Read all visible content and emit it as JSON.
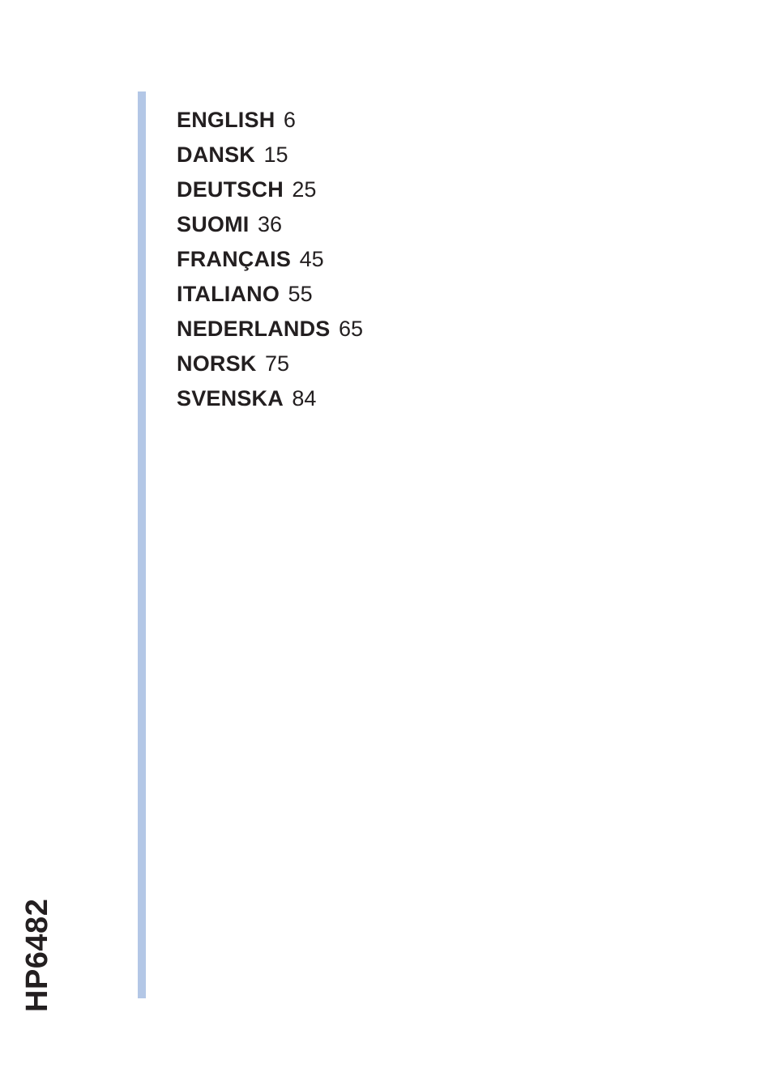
{
  "model": "HP6482",
  "side_rule_color": "#b3c7e6",
  "toc": [
    {
      "lang": "ENGLISH",
      "page": "6"
    },
    {
      "lang": "DANSK",
      "page": "15"
    },
    {
      "lang": "DEUTSCH",
      "page": "25"
    },
    {
      "lang": "SUOMI",
      "page": "36"
    },
    {
      "lang": "FRANÇAIS",
      "page": "45"
    },
    {
      "lang": "ITALIANO",
      "page": "55"
    },
    {
      "lang": "NEDERLANDS",
      "page": "65"
    },
    {
      "lang": "NORSK",
      "page": "75"
    },
    {
      "lang": "SVENSKA",
      "page": "84"
    }
  ]
}
